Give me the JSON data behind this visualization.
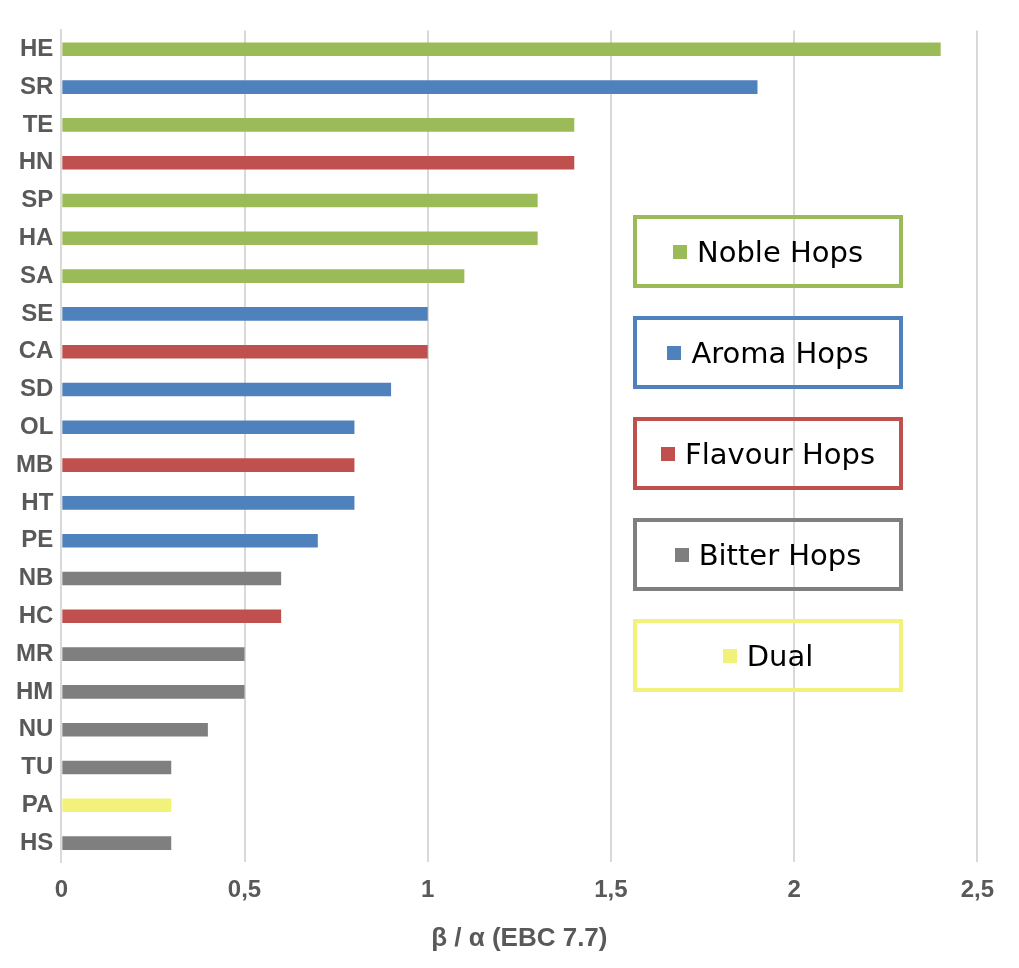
{
  "chart_data": {
    "type": "bar",
    "orientation": "horizontal",
    "xlabel": "β / α (EBC 7.7)",
    "categories": [
      "HE",
      "SR",
      "TE",
      "HN",
      "SP",
      "HA",
      "SA",
      "SE",
      "CA",
      "SD",
      "OL",
      "MB",
      "HT",
      "PE",
      "NB",
      "HC",
      "MR",
      "HM",
      "NU",
      "TU",
      "PA",
      "HS"
    ],
    "series": [
      {
        "name": "Noble Hops",
        "color": "#9bbb59",
        "values": [
          2.4,
          null,
          1.4,
          null,
          1.3,
          1.3,
          1.1,
          null,
          null,
          null,
          null,
          null,
          null,
          null,
          null,
          null,
          null,
          null,
          null,
          null,
          null,
          null
        ]
      },
      {
        "name": "Aroma Hops",
        "color": "#4f81bd",
        "values": [
          null,
          1.9,
          null,
          null,
          null,
          null,
          null,
          1.0,
          null,
          0.9,
          0.8,
          null,
          0.8,
          0.7,
          null,
          null,
          null,
          null,
          null,
          null,
          null,
          null
        ]
      },
      {
        "name": "Flavour Hops",
        "color": "#c0504d",
        "values": [
          null,
          null,
          null,
          1.4,
          null,
          null,
          null,
          null,
          1.0,
          null,
          null,
          0.8,
          null,
          null,
          null,
          0.6,
          null,
          null,
          null,
          null,
          null,
          null
        ]
      },
      {
        "name": "Bitter Hops",
        "color": "#7f7f7f",
        "values": [
          null,
          null,
          null,
          null,
          null,
          null,
          null,
          null,
          null,
          null,
          null,
          null,
          null,
          null,
          0.6,
          null,
          0.5,
          0.5,
          0.4,
          0.3,
          null,
          0.3
        ]
      },
      {
        "name": "Dual",
        "color": "#f2f27a",
        "values": [
          null,
          null,
          null,
          null,
          null,
          null,
          null,
          null,
          null,
          null,
          null,
          null,
          null,
          null,
          null,
          null,
          null,
          null,
          null,
          null,
          0.3,
          null
        ]
      }
    ],
    "xlim": [
      0,
      2.5
    ],
    "xticks": [
      0,
      {
        "value": 0.5,
        "label": "0,5"
      },
      1,
      {
        "value": 1.5,
        "label": "1,5"
      },
      2,
      {
        "value": 2.5,
        "label": "2,5"
      }
    ],
    "grid": "x",
    "legend": "right"
  }
}
